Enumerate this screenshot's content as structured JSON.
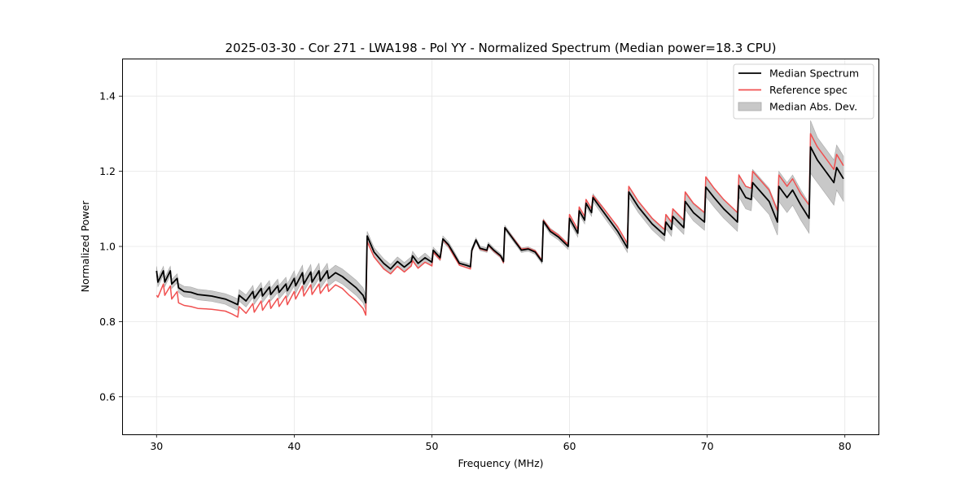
{
  "chart_data": {
    "type": "line",
    "title": "2025-03-30 - Cor 271 - LWA198 - Pol YY - Normalized Spectrum (Median power=18.3 CPU)",
    "xlabel": "Frequency (MHz)",
    "ylabel": "Normalized Power",
    "xlim": [
      27.5,
      82.5
    ],
    "ylim": [
      0.5,
      1.5
    ],
    "xticks": [
      30,
      40,
      50,
      60,
      70,
      80
    ],
    "xtick_labels": [
      "30",
      "40",
      "50",
      "60",
      "70",
      "80"
    ],
    "yticks": [
      0.6,
      0.8,
      1.0,
      1.2,
      1.4
    ],
    "ytick_labels": [
      "0.6",
      "0.8",
      "1.0",
      "1.2",
      "1.4"
    ],
    "grid": true,
    "legend_position": "top-right",
    "legend": [
      {
        "label": "Median Spectrum",
        "kind": "line",
        "color": "#000000"
      },
      {
        "label": "Reference spec",
        "kind": "line",
        "color": "#f05050"
      },
      {
        "label": "Median Abs. Dev.",
        "kind": "patch",
        "color": "#c8c8c8"
      }
    ],
    "x": [
      30.0,
      30.1,
      30.5,
      30.6,
      31.0,
      31.1,
      31.5,
      31.6,
      32.0,
      32.5,
      33.0,
      34.0,
      35.0,
      35.5,
      35.9,
      36.0,
      36.5,
      37.0,
      37.1,
      37.6,
      37.7,
      38.2,
      38.3,
      38.8,
      38.9,
      39.4,
      39.5,
      40.0,
      40.1,
      40.6,
      40.7,
      41.2,
      41.3,
      41.8,
      41.9,
      42.4,
      42.5,
      43.0,
      43.5,
      44.0,
      44.5,
      45.0,
      45.2,
      45.3,
      45.8,
      46.5,
      47.0,
      47.5,
      48.0,
      48.5,
      48.6,
      49.0,
      49.5,
      50.0,
      50.1,
      50.6,
      50.8,
      51.2,
      51.6,
      52.0,
      52.5,
      52.8,
      52.9,
      53.2,
      53.5,
      54.0,
      54.1,
      54.5,
      55.0,
      55.2,
      55.3,
      56.0,
      56.5,
      57.0,
      57.5,
      58.0,
      58.1,
      58.6,
      59.2,
      59.9,
      60.0,
      60.6,
      60.7,
      61.1,
      61.2,
      61.6,
      61.7,
      62.5,
      63.5,
      64.2,
      64.3,
      65.0,
      66.0,
      66.9,
      67.0,
      67.4,
      67.5,
      68.3,
      68.4,
      69.0,
      69.8,
      69.9,
      70.5,
      71.2,
      72.2,
      72.3,
      72.8,
      73.2,
      73.3,
      74.5,
      75.1,
      75.2,
      75.8,
      76.2,
      76.8,
      77.4,
      77.5,
      78.0,
      78.6,
      79.2,
      79.4,
      79.9
    ],
    "series": [
      {
        "name": "Median Spectrum",
        "color": "#000000",
        "values": [
          0.935,
          0.905,
          0.935,
          0.905,
          0.935,
          0.9,
          0.915,
          0.89,
          0.88,
          0.878,
          0.872,
          0.868,
          0.86,
          0.852,
          0.845,
          0.87,
          0.855,
          0.88,
          0.862,
          0.888,
          0.868,
          0.892,
          0.872,
          0.895,
          0.878,
          0.9,
          0.882,
          0.915,
          0.895,
          0.93,
          0.9,
          0.932,
          0.905,
          0.935,
          0.908,
          0.935,
          0.915,
          0.93,
          0.92,
          0.905,
          0.89,
          0.87,
          0.85,
          1.028,
          0.985,
          0.955,
          0.94,
          0.96,
          0.945,
          0.96,
          0.975,
          0.955,
          0.97,
          0.958,
          0.99,
          0.97,
          1.02,
          1.005,
          0.98,
          0.955,
          0.95,
          0.946,
          0.99,
          1.017,
          0.995,
          0.99,
          1.005,
          0.99,
          0.975,
          0.96,
          1.05,
          1.015,
          0.99,
          0.993,
          0.985,
          0.96,
          1.067,
          1.04,
          1.025,
          1.0,
          1.075,
          1.035,
          1.095,
          1.07,
          1.115,
          1.09,
          1.13,
          1.09,
          1.04,
          0.996,
          1.145,
          1.105,
          1.06,
          1.03,
          1.065,
          1.045,
          1.08,
          1.05,
          1.12,
          1.09,
          1.065,
          1.158,
          1.13,
          1.1,
          1.065,
          1.162,
          1.13,
          1.125,
          1.17,
          1.12,
          1.065,
          1.16,
          1.13,
          1.15,
          1.11,
          1.075,
          1.265,
          1.23,
          1.2,
          1.17,
          1.21,
          1.18
        ]
      },
      {
        "name": "Reference spec",
        "color": "#f05050",
        "values": [
          0.87,
          0.865,
          0.9,
          0.87,
          0.895,
          0.86,
          0.88,
          0.85,
          0.843,
          0.84,
          0.835,
          0.833,
          0.828,
          0.82,
          0.812,
          0.84,
          0.822,
          0.848,
          0.825,
          0.855,
          0.83,
          0.858,
          0.835,
          0.862,
          0.84,
          0.868,
          0.845,
          0.88,
          0.86,
          0.895,
          0.868,
          0.898,
          0.872,
          0.9,
          0.875,
          0.9,
          0.88,
          0.898,
          0.888,
          0.87,
          0.855,
          0.835,
          0.817,
          1.013,
          0.972,
          0.94,
          0.927,
          0.947,
          0.932,
          0.948,
          0.962,
          0.942,
          0.958,
          0.948,
          0.985,
          0.965,
          1.018,
          1.002,
          0.975,
          0.95,
          0.944,
          0.94,
          0.988,
          1.017,
          0.993,
          0.988,
          1.003,
          0.988,
          0.973,
          0.957,
          1.05,
          1.017,
          0.993,
          0.995,
          0.988,
          0.963,
          1.07,
          1.045,
          1.03,
          1.005,
          1.085,
          1.045,
          1.105,
          1.08,
          1.125,
          1.1,
          1.135,
          1.1,
          1.052,
          1.008,
          1.16,
          1.12,
          1.075,
          1.045,
          1.085,
          1.065,
          1.1,
          1.07,
          1.145,
          1.115,
          1.09,
          1.185,
          1.155,
          1.125,
          1.09,
          1.19,
          1.16,
          1.155,
          1.2,
          1.15,
          1.095,
          1.19,
          1.16,
          1.18,
          1.14,
          1.11,
          1.3,
          1.265,
          1.235,
          1.205,
          1.245,
          1.215
        ]
      },
      {
        "name": "Median Abs. Dev.",
        "color": "#c8c8c8",
        "kind": "band",
        "half_width": [
          0.012,
          0.012,
          0.012,
          0.012,
          0.012,
          0.012,
          0.012,
          0.012,
          0.014,
          0.014,
          0.014,
          0.014,
          0.014,
          0.015,
          0.015,
          0.015,
          0.016,
          0.016,
          0.016,
          0.016,
          0.017,
          0.017,
          0.017,
          0.018,
          0.018,
          0.018,
          0.018,
          0.02,
          0.02,
          0.02,
          0.02,
          0.02,
          0.02,
          0.02,
          0.02,
          0.02,
          0.02,
          0.02,
          0.02,
          0.02,
          0.02,
          0.02,
          0.02,
          0.012,
          0.012,
          0.012,
          0.012,
          0.012,
          0.012,
          0.012,
          0.012,
          0.012,
          0.012,
          0.008,
          0.008,
          0.008,
          0.008,
          0.008,
          0.008,
          0.006,
          0.006,
          0.006,
          0.006,
          0.006,
          0.006,
          0.006,
          0.006,
          0.006,
          0.006,
          0.006,
          0.006,
          0.006,
          0.006,
          0.006,
          0.006,
          0.006,
          0.006,
          0.008,
          0.008,
          0.008,
          0.01,
          0.01,
          0.01,
          0.01,
          0.01,
          0.01,
          0.01,
          0.012,
          0.012,
          0.012,
          0.015,
          0.015,
          0.016,
          0.016,
          0.018,
          0.018,
          0.018,
          0.018,
          0.022,
          0.022,
          0.022,
          0.025,
          0.025,
          0.025,
          0.025,
          0.03,
          0.03,
          0.03,
          0.035,
          0.035,
          0.035,
          0.04,
          0.04,
          0.04,
          0.04,
          0.04,
          0.07,
          0.06,
          0.06,
          0.06,
          0.06,
          0.06
        ]
      }
    ]
  }
}
